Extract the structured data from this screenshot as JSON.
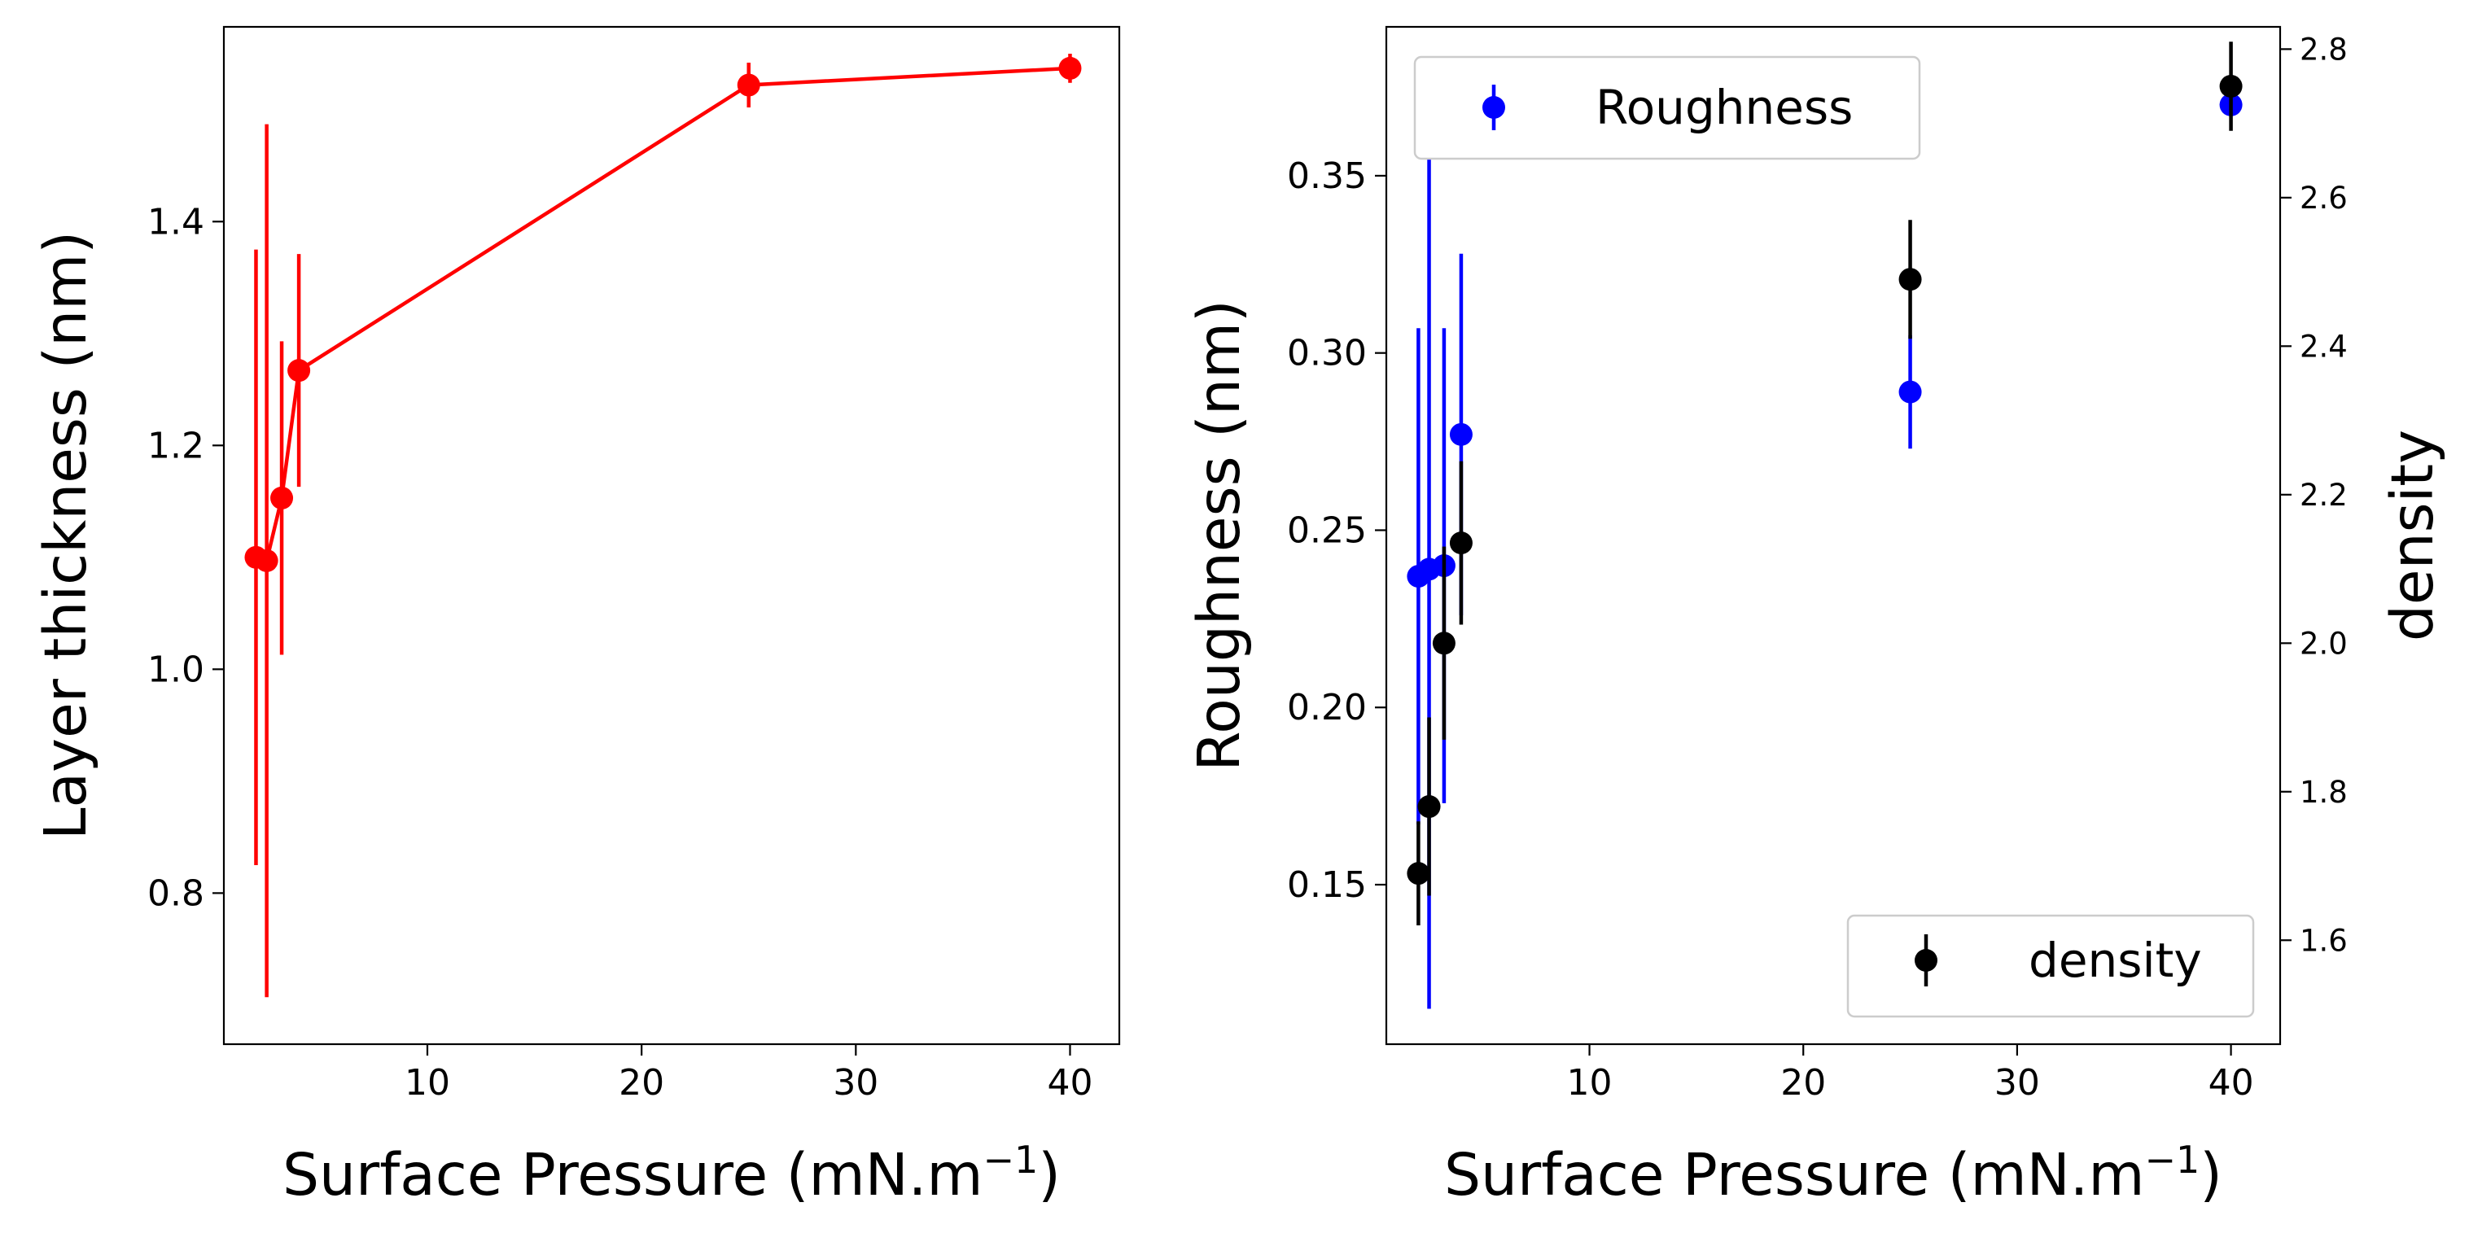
{
  "chart_data": [
    {
      "type": "line",
      "title": "",
      "xlabel": "Surface Pressure (mN.m",
      "xlabel_superscript": "−1",
      "xlabel_suffix": ")",
      "ylabel": "Layer thickness (nm)",
      "xlim": [
        0.5,
        42.3
      ],
      "ylim": [
        0.665,
        1.574
      ],
      "xticks": [
        10,
        20,
        30,
        40
      ],
      "xtick_labels": [
        "10",
        "20",
        "30",
        "40"
      ],
      "yticks": [
        0.8,
        1.0,
        1.2,
        1.4
      ],
      "ytick_labels": [
        "0.8",
        "1.0",
        "1.2",
        "1.4"
      ],
      "grid": false,
      "series": [
        {
          "name": "Layer thickness",
          "color": "#ff0000",
          "x": [
            2,
            2.5,
            3.2,
            4,
            25,
            40
          ],
          "y": [
            1.1,
            1.097,
            1.153,
            1.267,
            1.522,
            1.537
          ],
          "yerr": [
            0.275,
            0.39,
            0.14,
            0.104,
            0.02,
            0.013
          ]
        }
      ]
    },
    {
      "type": "scatter",
      "title": "",
      "xlabel": "Surface Pressure (mN.m",
      "xlabel_superscript": "−1",
      "xlabel_suffix": ")",
      "ylabel": "Roughness (nm)",
      "ylabel_color": "#0000ff",
      "y2label": "density",
      "xlim": [
        0.5,
        42.3
      ],
      "ylim": [
        0.105,
        0.392
      ],
      "y2lim": [
        1.46,
        2.83
      ],
      "xticks": [
        10,
        20,
        30,
        40
      ],
      "xtick_labels": [
        "10",
        "20",
        "30",
        "40"
      ],
      "yticks": [
        0.15,
        0.2,
        0.25,
        0.3,
        0.35
      ],
      "ytick_labels": [
        "0.15",
        "0.20",
        "0.25",
        "0.30",
        "0.35"
      ],
      "y2ticks": [
        1.6,
        1.8,
        2.0,
        2.2,
        2.4,
        2.6,
        2.8
      ],
      "y2tick_labels": [
        "1.6",
        "1.8",
        "2.0",
        "2.2",
        "2.4",
        "2.6",
        "2.8"
      ],
      "grid": false,
      "series": [
        {
          "name": "Roughness",
          "axis": "left",
          "color": "#0000ff",
          "x": [
            2,
            2.5,
            3.2,
            4,
            25,
            40
          ],
          "y": [
            0.237,
            0.239,
            0.24,
            0.277,
            0.289,
            0.37
          ],
          "yerr": [
            0.07,
            0.124,
            0.067,
            0.051,
            0.016,
            0.0
          ]
        },
        {
          "name": "density",
          "axis": "right",
          "color": "#000000",
          "x": [
            2,
            2.5,
            3.2,
            4,
            25,
            40
          ],
          "y": [
            1.69,
            1.78,
            2.0,
            2.135,
            2.49,
            2.75
          ],
          "yerr": [
            0.07,
            0.12,
            0.13,
            0.11,
            0.08,
            0.06
          ]
        }
      ],
      "legends": [
        {
          "label": "Roughness",
          "placement": "upper-left"
        },
        {
          "label": "density",
          "placement": "lower-right"
        }
      ]
    }
  ]
}
